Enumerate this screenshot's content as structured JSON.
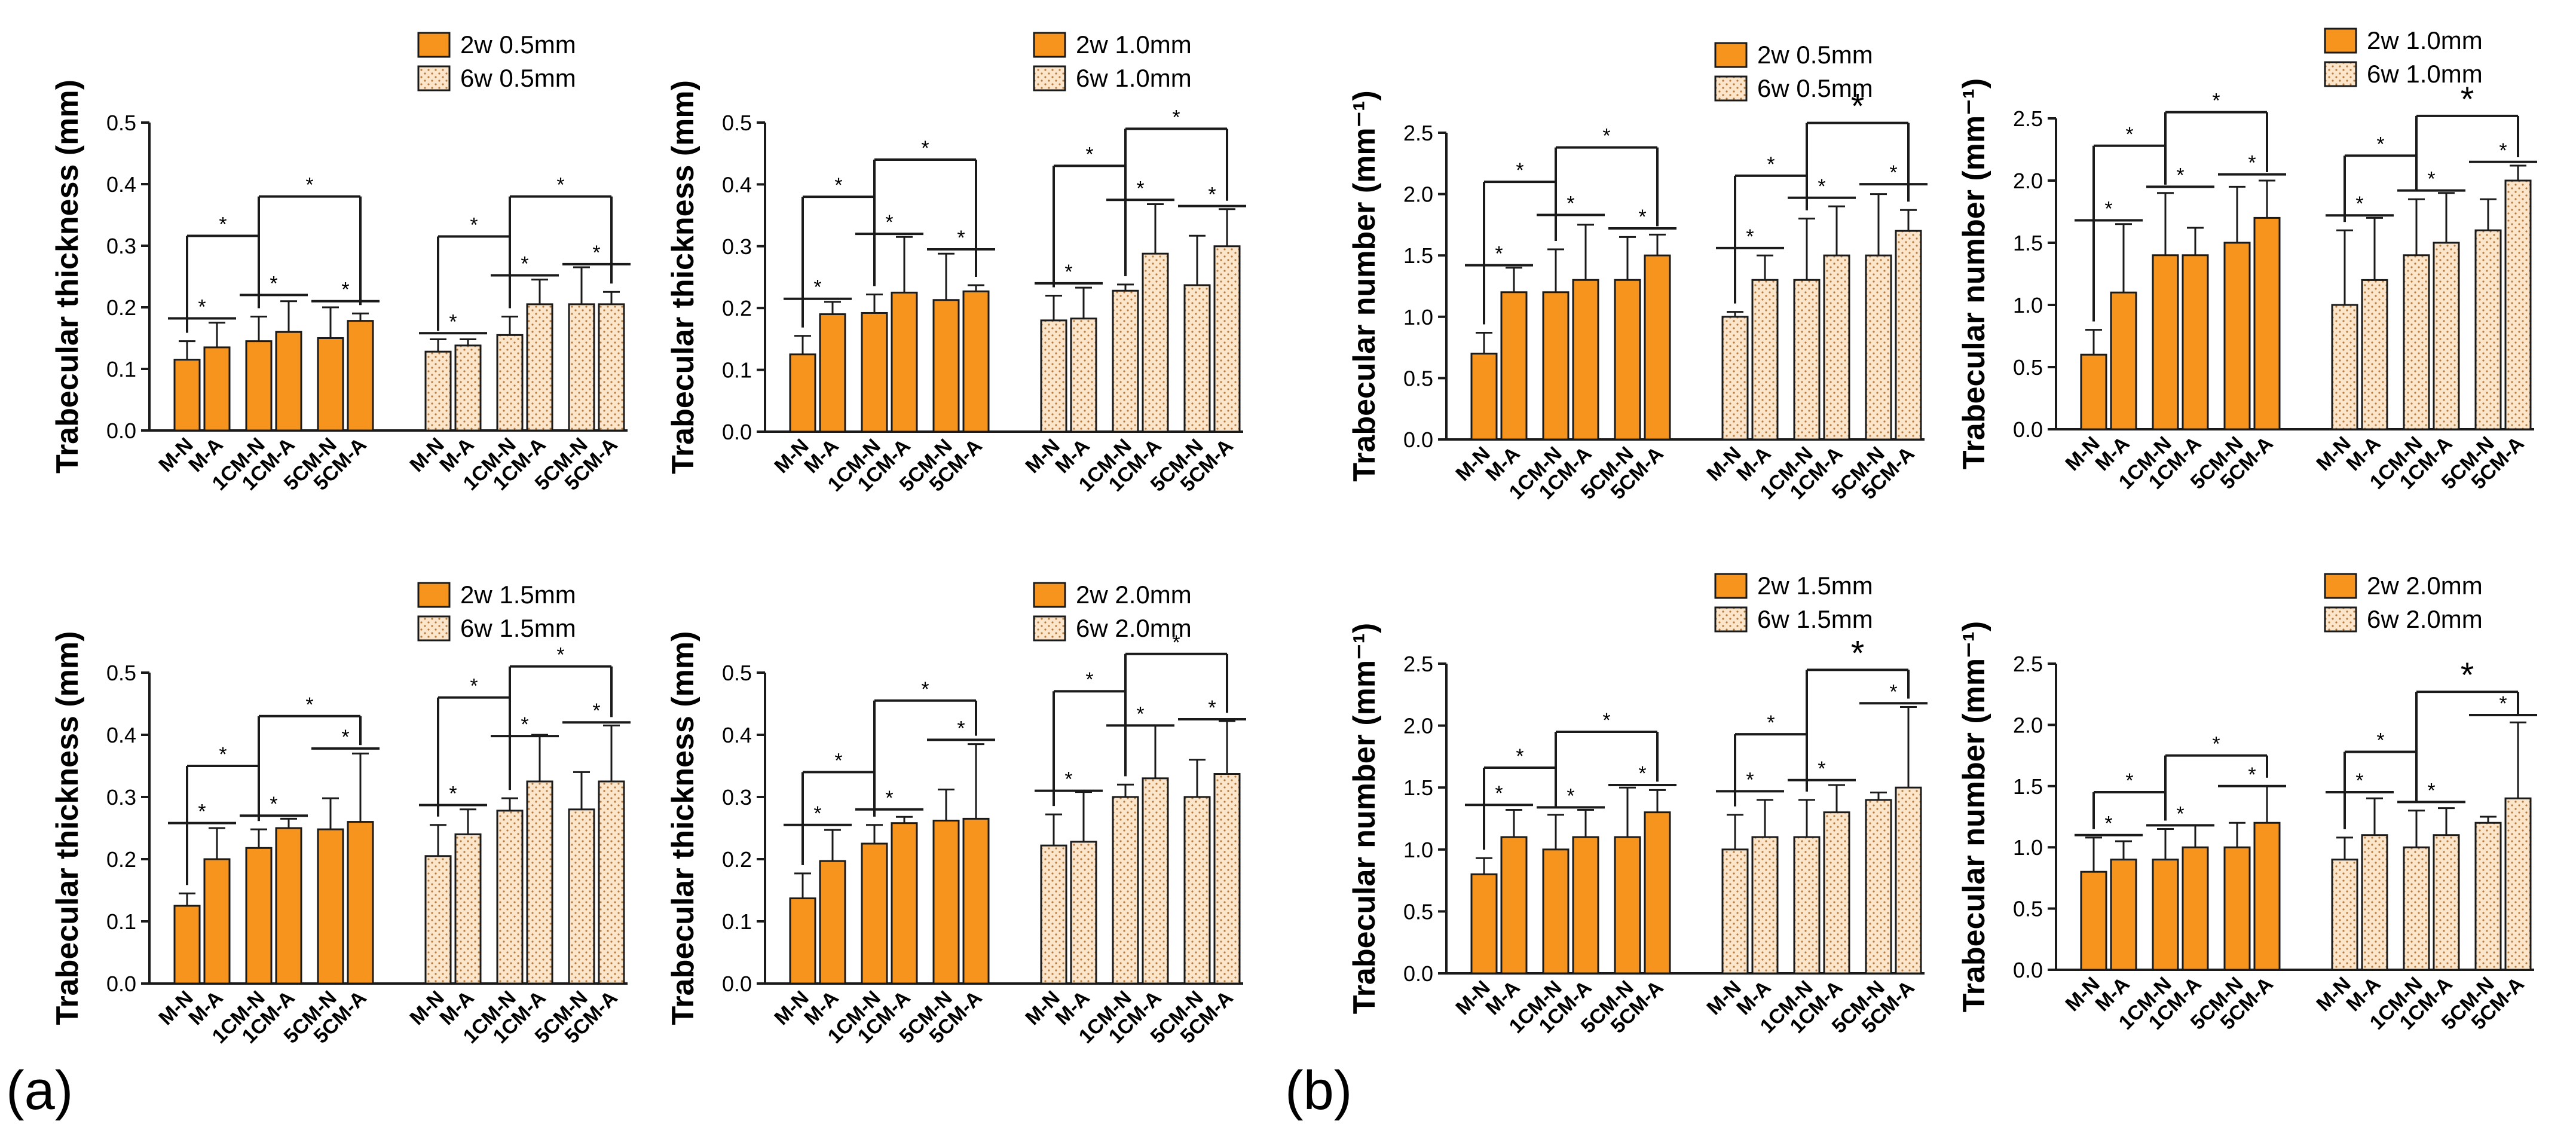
{
  "panel_labels": [
    "(a)",
    "(b)"
  ],
  "colors": {
    "w2": "#f7941d",
    "w6": "#fbe5cb",
    "dots": "#b97a3a",
    "edge": "#1a1a1a"
  },
  "categories": [
    "M-N",
    "M-A",
    "1CM-N",
    "1CM-A",
    "5CM-N",
    "5CM-A"
  ],
  "chart_data": [
    {
      "type": "bar",
      "panel": "a",
      "ylabel": "Trabecular thickness (mm)",
      "ylim": [
        0,
        0.5
      ],
      "yticks": [
        "0.0",
        "0.1",
        "0.2",
        "0.3",
        "0.4",
        "0.5"
      ],
      "ytick_values": [
        0,
        0.1,
        0.2,
        0.3,
        0.4,
        0.5
      ],
      "legend": [
        "2w 0.5mm",
        "6w 0.5mm"
      ],
      "series": [
        {
          "name": "2w 0.5mm",
          "values": [
            0.115,
            0.135,
            0.145,
            0.16,
            0.15,
            0.178
          ],
          "errors": [
            0.03,
            0.04,
            0.04,
            0.05,
            0.05,
            0.012
          ]
        },
        {
          "name": "6w 0.5mm",
          "values": [
            0.128,
            0.138,
            0.155,
            0.205,
            0.205,
            0.205
          ],
          "errors": [
            0.02,
            0.01,
            0.03,
            0.04,
            0.06,
            0.02
          ]
        }
      ],
      "significance": [
        {
          "label": "*",
          "y": 0.182,
          "i": 0,
          "j": 1
        },
        {
          "label": "*",
          "y": 0.22,
          "i": 2,
          "j": 3
        },
        {
          "label": "*",
          "y": 0.21,
          "i": 4,
          "j": 5
        },
        {
          "label": "*",
          "y": 0.158,
          "i": 6,
          "j": 7
        },
        {
          "label": "*",
          "y": 0.252,
          "i": 8,
          "j": 9
        },
        {
          "label": "*",
          "y": 0.27,
          "i": 10,
          "j": 11
        },
        {
          "label": "*",
          "y": 0.316,
          "i": 0,
          "j": 2,
          "drop": true
        },
        {
          "label": "*",
          "y": 0.38,
          "i": 2,
          "j": 5,
          "drop": true
        },
        {
          "label": "*",
          "y": 0.315,
          "i": 6,
          "j": 8,
          "drop": true
        },
        {
          "label": "*",
          "y": 0.38,
          "i": 8,
          "j": 11,
          "drop": true
        }
      ]
    },
    {
      "type": "bar",
      "panel": "a",
      "ylabel": "Trabecular thickness (mm)",
      "ylim": [
        0,
        0.5
      ],
      "yticks": [
        "0.0",
        "0.1",
        "0.2",
        "0.3",
        "0.4",
        "0.5"
      ],
      "ytick_values": [
        0,
        0.1,
        0.2,
        0.3,
        0.4,
        0.5
      ],
      "legend": [
        "2w 1.0mm",
        "6w 1.0mm"
      ],
      "series": [
        {
          "name": "2w 1.0mm",
          "values": [
            0.125,
            0.19,
            0.192,
            0.225,
            0.213,
            0.227
          ],
          "errors": [
            0.03,
            0.02,
            0.03,
            0.09,
            0.075,
            0.01
          ]
        },
        {
          "name": "6w 1.0mm",
          "values": [
            0.18,
            0.183,
            0.228,
            0.288,
            0.237,
            0.3
          ],
          "errors": [
            0.04,
            0.05,
            0.01,
            0.08,
            0.08,
            0.06
          ]
        }
      ],
      "significance": [
        {
          "label": "*",
          "y": 0.215,
          "i": 0,
          "j": 1
        },
        {
          "label": "*",
          "y": 0.32,
          "i": 2,
          "j": 3
        },
        {
          "label": "*",
          "y": 0.295,
          "i": 4,
          "j": 5
        },
        {
          "label": "*",
          "y": 0.24,
          "i": 6,
          "j": 7
        },
        {
          "label": "*",
          "y": 0.375,
          "i": 8,
          "j": 9
        },
        {
          "label": "*",
          "y": 0.365,
          "i": 10,
          "j": 11
        },
        {
          "label": "*",
          "y": 0.38,
          "i": 0,
          "j": 2,
          "drop": true
        },
        {
          "label": "*",
          "y": 0.44,
          "i": 2,
          "j": 5,
          "drop": true
        },
        {
          "label": "*",
          "y": 0.43,
          "i": 6,
          "j": 8,
          "drop": true
        },
        {
          "label": "*",
          "y": 0.49,
          "i": 8,
          "j": 11,
          "drop": true
        }
      ]
    },
    {
      "type": "bar",
      "panel": "a",
      "ylabel": "Trabecular thickness (mm)",
      "ylim": [
        0,
        0.5
      ],
      "yticks": [
        "0.0",
        "0.1",
        "0.2",
        "0.3",
        "0.4",
        "0.5"
      ],
      "ytick_values": [
        0,
        0.1,
        0.2,
        0.3,
        0.4,
        0.5
      ],
      "legend": [
        "2w 1.5mm",
        "6w 1.5mm"
      ],
      "series": [
        {
          "name": "2w 1.5mm",
          "values": [
            0.125,
            0.2,
            0.218,
            0.25,
            0.248,
            0.26
          ],
          "errors": [
            0.02,
            0.05,
            0.03,
            0.015,
            0.05,
            0.11
          ]
        },
        {
          "name": "6w 1.5mm",
          "values": [
            0.205,
            0.24,
            0.278,
            0.325,
            0.28,
            0.325
          ],
          "errors": [
            0.05,
            0.04,
            0.02,
            0.075,
            0.06,
            0.09
          ]
        }
      ],
      "significance": [
        {
          "label": "*",
          "y": 0.258,
          "i": 0,
          "j": 1
        },
        {
          "label": "*",
          "y": 0.27,
          "i": 2,
          "j": 3
        },
        {
          "label": "*",
          "y": 0.378,
          "i": 4,
          "j": 5
        },
        {
          "label": "*",
          "y": 0.287,
          "i": 6,
          "j": 7
        },
        {
          "label": "*",
          "y": 0.398,
          "i": 8,
          "j": 9
        },
        {
          "label": "*",
          "y": 0.42,
          "i": 10,
          "j": 11
        },
        {
          "label": "*",
          "y": 0.35,
          "i": 0,
          "j": 2,
          "drop": true
        },
        {
          "label": "*",
          "y": 0.43,
          "i": 2,
          "j": 5,
          "drop": true
        },
        {
          "label": "*",
          "y": 0.46,
          "i": 6,
          "j": 8,
          "drop": true
        },
        {
          "label": "*",
          "y": 0.51,
          "i": 8,
          "j": 11,
          "drop": true
        }
      ]
    },
    {
      "type": "bar",
      "panel": "a",
      "ylabel": "Trabecular thickness (mm)",
      "ylim": [
        0,
        0.5
      ],
      "yticks": [
        "0.0",
        "0.1",
        "0.2",
        "0.3",
        "0.4",
        "0.5"
      ],
      "ytick_values": [
        0,
        0.1,
        0.2,
        0.3,
        0.4,
        0.5
      ],
      "legend": [
        "2w 2.0mm",
        "6w 2.0mm"
      ],
      "series": [
        {
          "name": "2w 2.0mm",
          "values": [
            0.137,
            0.197,
            0.225,
            0.258,
            0.262,
            0.265
          ],
          "errors": [
            0.04,
            0.05,
            0.03,
            0.01,
            0.05,
            0.12
          ]
        },
        {
          "name": "6w 2.0mm",
          "values": [
            0.222,
            0.228,
            0.3,
            0.33,
            0.3,
            0.337
          ],
          "errors": [
            0.05,
            0.08,
            0.02,
            0.085,
            0.06,
            0.085
          ]
        }
      ],
      "significance": [
        {
          "label": "*",
          "y": 0.255,
          "i": 0,
          "j": 1
        },
        {
          "label": "*",
          "y": 0.28,
          "i": 2,
          "j": 3
        },
        {
          "label": "*",
          "y": 0.392,
          "i": 4,
          "j": 5
        },
        {
          "label": "*",
          "y": 0.31,
          "i": 6,
          "j": 7
        },
        {
          "label": "*",
          "y": 0.415,
          "i": 8,
          "j": 9
        },
        {
          "label": "*",
          "y": 0.425,
          "i": 10,
          "j": 11
        },
        {
          "label": "*",
          "y": 0.34,
          "i": 0,
          "j": 2,
          "drop": true
        },
        {
          "label": "*",
          "y": 0.455,
          "i": 2,
          "j": 5,
          "drop": true
        },
        {
          "label": "*",
          "y": 0.47,
          "i": 6,
          "j": 8,
          "drop": true
        },
        {
          "label": "*",
          "y": 0.53,
          "i": 8,
          "j": 11,
          "drop": true
        }
      ]
    },
    {
      "type": "bar",
      "panel": "b",
      "ylabel": "Trabecular number (mm⁻¹)",
      "ylim": [
        0,
        2.5
      ],
      "yticks": [
        "0.0",
        "0.5",
        "1.0",
        "1.5",
        "2.0",
        "2.5"
      ],
      "ytick_values": [
        0,
        0.5,
        1.0,
        1.5,
        2.0,
        2.5
      ],
      "legend": [
        "2w 0.5mm",
        "6w 0.5mm"
      ],
      "series": [
        {
          "name": "2w 0.5mm",
          "values": [
            0.7,
            1.2,
            1.2,
            1.3,
            1.3,
            1.5
          ],
          "errors": [
            0.17,
            0.2,
            0.35,
            0.45,
            0.35,
            0.17
          ]
        },
        {
          "name": "6w 0.5mm",
          "values": [
            1.0,
            1.3,
            1.3,
            1.5,
            1.5,
            1.7
          ],
          "errors": [
            0.04,
            0.2,
            0.5,
            0.4,
            0.5,
            0.17
          ]
        }
      ],
      "significance": [
        {
          "label": "*",
          "y": 1.42,
          "i": 0,
          "j": 1
        },
        {
          "label": "*",
          "y": 1.83,
          "i": 2,
          "j": 3
        },
        {
          "label": "*",
          "y": 1.72,
          "i": 4,
          "j": 5
        },
        {
          "label": "*",
          "y": 1.56,
          "i": 6,
          "j": 7
        },
        {
          "label": "*",
          "y": 1.97,
          "i": 8,
          "j": 9
        },
        {
          "label": "*",
          "y": 2.08,
          "i": 10,
          "j": 11
        },
        {
          "label": "*",
          "y": 2.1,
          "i": 0,
          "j": 2,
          "drop": true
        },
        {
          "label": "*",
          "y": 2.38,
          "i": 2,
          "j": 5,
          "drop": true
        },
        {
          "label": "*",
          "y": 2.15,
          "i": 6,
          "j": 8,
          "drop": true
        },
        {
          "label": "*",
          "y": 2.58,
          "i": 8,
          "j": 11,
          "drop": true,
          "big": true
        }
      ]
    },
    {
      "type": "bar",
      "panel": "b",
      "ylabel": "Trabecular number (mm⁻¹)",
      "ylim": [
        0,
        2.5
      ],
      "yticks": [
        "0.0",
        "0.5",
        "1.0",
        "1.5",
        "2.0",
        "2.5"
      ],
      "ytick_values": [
        0,
        0.5,
        1.0,
        1.5,
        2.0,
        2.5
      ],
      "legend": [
        "2w 1.0mm",
        "6w 1.0mm"
      ],
      "series": [
        {
          "name": "2w 1.0mm",
          "values": [
            0.6,
            1.1,
            1.4,
            1.4,
            1.5,
            1.7
          ],
          "errors": [
            0.2,
            0.55,
            0.5,
            0.22,
            0.45,
            0.3
          ]
        },
        {
          "name": "6w 1.0mm",
          "values": [
            1.0,
            1.2,
            1.4,
            1.5,
            1.6,
            2.0
          ],
          "errors": [
            0.6,
            0.5,
            0.45,
            0.4,
            0.25,
            0.12
          ]
        }
      ],
      "significance": [
        {
          "label": "*",
          "y": 1.68,
          "i": 0,
          "j": 1
        },
        {
          "label": "*",
          "y": 1.95,
          "i": 2,
          "j": 3
        },
        {
          "label": "*",
          "y": 2.05,
          "i": 4,
          "j": 5
        },
        {
          "label": "*",
          "y": 1.72,
          "i": 6,
          "j": 7
        },
        {
          "label": "*",
          "y": 1.92,
          "i": 8,
          "j": 9
        },
        {
          "label": "*",
          "y": 2.15,
          "i": 10,
          "j": 11
        },
        {
          "label": "*",
          "y": 2.28,
          "i": 0,
          "j": 2,
          "drop": true
        },
        {
          "label": "*",
          "y": 2.55,
          "i": 2,
          "j": 5,
          "drop": true
        },
        {
          "label": "*",
          "y": 2.2,
          "i": 6,
          "j": 8,
          "drop": true
        },
        {
          "label": "*",
          "y": 2.52,
          "i": 8,
          "j": 11,
          "drop": true,
          "big": true
        }
      ]
    },
    {
      "type": "bar",
      "panel": "b",
      "ylabel": "Trabecular number (mm⁻¹)",
      "ylim": [
        0,
        2.5
      ],
      "yticks": [
        "0.0",
        "0.5",
        "1.0",
        "1.5",
        "2.0",
        "2.5"
      ],
      "ytick_values": [
        0,
        0.5,
        1.0,
        1.5,
        2.0,
        2.5
      ],
      "legend": [
        "2w 1.5mm",
        "6w 1.5mm"
      ],
      "series": [
        {
          "name": "2w 1.5mm",
          "values": [
            0.8,
            1.1,
            1.0,
            1.1,
            1.1,
            1.3
          ],
          "errors": [
            0.13,
            0.22,
            0.28,
            0.22,
            0.4,
            0.18
          ]
        },
        {
          "name": "6w 1.5mm",
          "values": [
            1.0,
            1.1,
            1.1,
            1.3,
            1.4,
            1.5
          ],
          "errors": [
            0.28,
            0.3,
            0.3,
            0.22,
            0.06,
            0.65
          ]
        }
      ],
      "significance": [
        {
          "label": "*",
          "y": 1.36,
          "i": 0,
          "j": 1
        },
        {
          "label": "*",
          "y": 1.34,
          "i": 2,
          "j": 3
        },
        {
          "label": "*",
          "y": 1.52,
          "i": 4,
          "j": 5
        },
        {
          "label": "*",
          "y": 1.47,
          "i": 6,
          "j": 7
        },
        {
          "label": "*",
          "y": 1.56,
          "i": 8,
          "j": 9
        },
        {
          "label": "*",
          "y": 2.18,
          "i": 10,
          "j": 11
        },
        {
          "label": "*",
          "y": 1.66,
          "i": 0,
          "j": 2,
          "drop": true
        },
        {
          "label": "*",
          "y": 1.95,
          "i": 2,
          "j": 5,
          "drop": true
        },
        {
          "label": "*",
          "y": 1.93,
          "i": 6,
          "j": 8,
          "drop": true
        },
        {
          "label": "*",
          "y": 2.45,
          "i": 8,
          "j": 11,
          "drop": true,
          "big": true
        }
      ]
    },
    {
      "type": "bar",
      "panel": "b",
      "ylabel": "Trabecular number (mm⁻¹)",
      "ylim": [
        0,
        2.5
      ],
      "yticks": [
        "0.0",
        "0.5",
        "1.0",
        "1.5",
        "2.0",
        "2.5"
      ],
      "ytick_values": [
        0,
        0.5,
        1.0,
        1.5,
        2.0,
        2.5
      ],
      "legend": [
        "2w 2.0mm",
        "6w 2.0mm"
      ],
      "series": [
        {
          "name": "2w 2.0mm",
          "values": [
            0.8,
            0.9,
            0.9,
            1.0,
            1.0,
            1.2
          ],
          "errors": [
            0.28,
            0.15,
            0.25,
            0.18,
            0.2,
            0.3
          ]
        },
        {
          "name": "6w 2.0mm",
          "values": [
            0.9,
            1.1,
            1.0,
            1.1,
            1.2,
            1.4
          ],
          "errors": [
            0.18,
            0.3,
            0.3,
            0.22,
            0.05,
            0.62
          ]
        }
      ],
      "significance": [
        {
          "label": "*",
          "y": 1.1,
          "i": 0,
          "j": 1
        },
        {
          "label": "*",
          "y": 1.18,
          "i": 2,
          "j": 3
        },
        {
          "label": "*",
          "y": 1.5,
          "i": 4,
          "j": 5
        },
        {
          "label": "*",
          "y": 1.45,
          "i": 6,
          "j": 7
        },
        {
          "label": "*",
          "y": 1.37,
          "i": 8,
          "j": 9
        },
        {
          "label": "*",
          "y": 2.08,
          "i": 10,
          "j": 11
        },
        {
          "label": "*",
          "y": 1.45,
          "i": 0,
          "j": 2,
          "drop": true
        },
        {
          "label": "*",
          "y": 1.75,
          "i": 2,
          "j": 5,
          "drop": true
        },
        {
          "label": "*",
          "y": 1.78,
          "i": 6,
          "j": 8,
          "drop": true
        },
        {
          "label": "*",
          "y": 2.27,
          "i": 8,
          "j": 11,
          "drop": true,
          "big": true
        }
      ]
    }
  ]
}
